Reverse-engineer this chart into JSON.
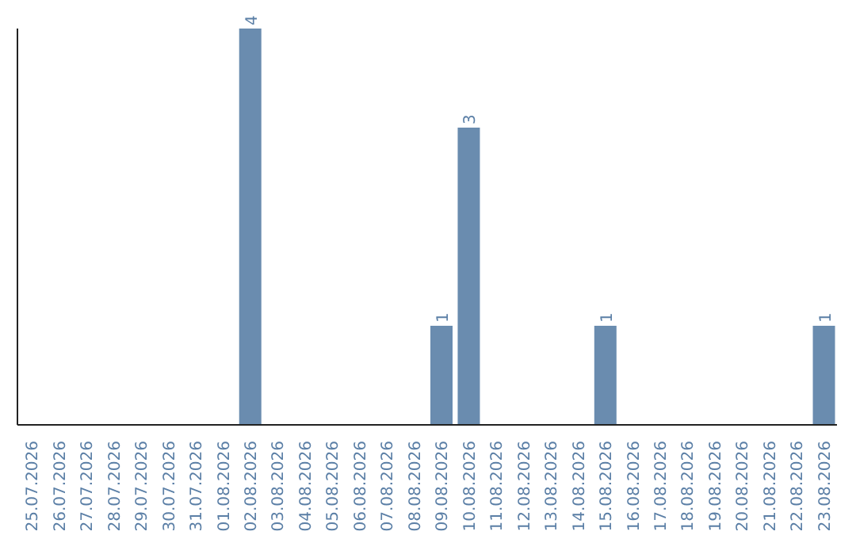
{
  "chart_data": {
    "type": "bar",
    "categories": [
      "25.07.2026",
      "26.07.2026",
      "27.07.2026",
      "28.07.2026",
      "29.07.2026",
      "30.07.2026",
      "31.07.2026",
      "01.08.2026",
      "02.08.2026",
      "03.08.2026",
      "04.08.2026",
      "05.08.2026",
      "06.08.2026",
      "07.08.2026",
      "08.08.2026",
      "09.08.2026",
      "10.08.2026",
      "11.08.2026",
      "12.08.2026",
      "13.08.2026",
      "14.08.2026",
      "15.08.2026",
      "16.08.2026",
      "17.08.2026",
      "18.08.2026",
      "19.08.2026",
      "20.08.2026",
      "21.08.2026",
      "22.08.2026",
      "23.08.2026"
    ],
    "values": [
      0,
      0,
      0,
      0,
      0,
      0,
      0,
      0,
      4,
      0,
      0,
      0,
      0,
      0,
      0,
      1,
      3,
      0,
      0,
      0,
      0,
      1,
      0,
      0,
      0,
      0,
      0,
      0,
      0,
      1
    ],
    "value_labels": [
      null,
      null,
      null,
      null,
      null,
      null,
      null,
      null,
      "4",
      null,
      null,
      null,
      null,
      null,
      null,
      "1",
      "3",
      null,
      null,
      null,
      null,
      "1",
      null,
      null,
      null,
      null,
      null,
      null,
      null,
      "1"
    ],
    "color": "#6a8caf"
  }
}
